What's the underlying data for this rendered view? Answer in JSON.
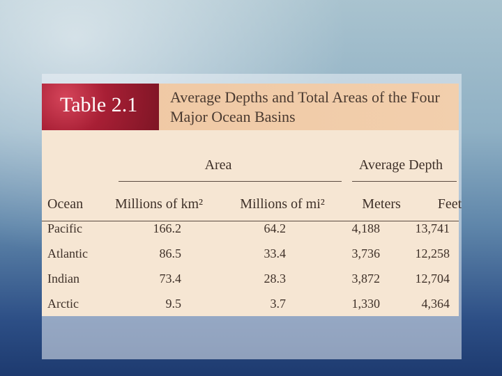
{
  "header": {
    "label": "Table 2.1",
    "title": "Average Depths and Total Areas of the Four Major Ocean Basins"
  },
  "table": {
    "groups": [
      "Area",
      "Average Depth"
    ],
    "columns": [
      "Ocean",
      "Millions of km²",
      "Millions of mi²",
      "Meters",
      "Feet"
    ],
    "rows": [
      [
        "Pacific",
        "166.2",
        "64.2",
        "4,188",
        "13,741"
      ],
      [
        "Atlantic",
        "86.5",
        "33.4",
        "3,736",
        "12,258"
      ],
      [
        "Indian",
        "73.4",
        "28.3",
        "3,872",
        "12,704"
      ],
      [
        "Arctic",
        "9.5",
        "3.7",
        "1,330",
        "4,364"
      ]
    ]
  }
}
